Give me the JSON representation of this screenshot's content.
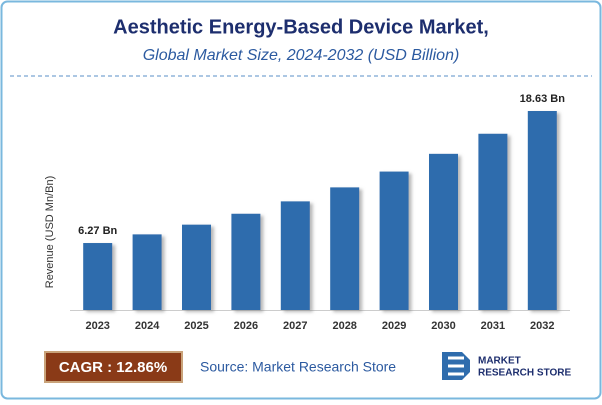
{
  "chart_data": {
    "type": "bar",
    "title": "Aesthetic Energy-Based Device Market,",
    "subtitle": "Global Market Size, 2024-2032 (USD Billion)",
    "y_label": "Revenue (USD Mn/Bn)",
    "categories": [
      "2023",
      "2024",
      "2025",
      "2026",
      "2027",
      "2028",
      "2029",
      "2030",
      "2031",
      "2032"
    ],
    "values": [
      6.27,
      7.08,
      7.99,
      9.01,
      10.17,
      11.48,
      12.96,
      14.62,
      16.5,
      18.63
    ],
    "value_labels": [
      "6.27 Bn",
      null,
      null,
      null,
      null,
      null,
      null,
      null,
      null,
      "18.63 Bn"
    ],
    "color": "#2e6cad"
  },
  "footer": {
    "cagr": "CAGR : 12.86%",
    "source": "Source: Market Research Store",
    "logo_line1": "MARKET",
    "logo_line2": "RESEARCH STORE"
  }
}
